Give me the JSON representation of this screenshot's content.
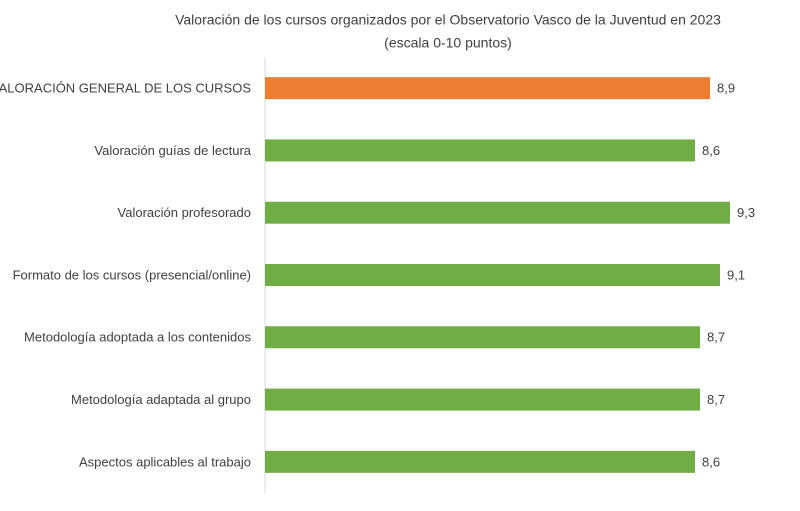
{
  "chart_data": {
    "type": "bar",
    "orientation": "horizontal",
    "title": "Valoración de los cursos organizados por el Observatorio Vasco de la Juventud en 2023",
    "subtitle": "(escala 0-10 puntos)",
    "categories": [
      "VALORACIÓN GENERAL DE LOS CURSOS",
      "Valoración guías de lectura",
      "Valoración profesorado",
      "Formato de los cursos (presencial/online)",
      "Metodología adoptada a los contenidos",
      "Metodología adaptada al grupo",
      "Aspectos aplicables al trabajo"
    ],
    "values": [
      8.9,
      8.6,
      9.3,
      9.1,
      8.7,
      8.7,
      8.6
    ],
    "value_labels": [
      "8,9",
      "8,6",
      "9,3",
      "9,1",
      "8,7",
      "8,7",
      "8,6"
    ],
    "colors": [
      "#ed7d31",
      "#70ad47",
      "#70ad47",
      "#70ad47",
      "#70ad47",
      "#70ad47",
      "#70ad47"
    ],
    "xlim": [
      0,
      10
    ]
  }
}
